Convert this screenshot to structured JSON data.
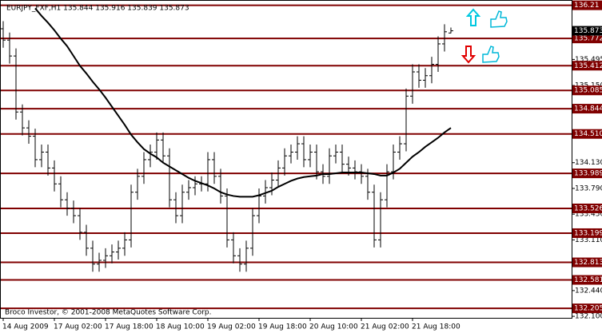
{
  "chart_data": {
    "type": "ohlc",
    "symbol_info": "EURJPY_FXF,H1  135.844 135.916 135.839 135.873",
    "copyright": "Broco Investor, © 2001-2008 MetaQuotes Software Corp.",
    "categories": [
      "14 Aug 2009",
      null,
      null,
      null,
      null,
      null,
      null,
      null,
      "17 Aug 02:00",
      null,
      null,
      null,
      null,
      null,
      null,
      null,
      "17 Aug 18:00",
      null,
      null,
      null,
      null,
      null,
      null,
      null,
      "18 Aug 10:00",
      null,
      null,
      null,
      null,
      null,
      null,
      null,
      "19 Aug 02:00",
      null,
      null,
      null,
      null,
      null,
      null,
      null,
      "19 Aug 18:00",
      null,
      null,
      null,
      null,
      null,
      null,
      null,
      "20 Aug 10:00",
      null,
      null,
      null,
      null,
      null,
      null,
      null,
      "21 Aug 02:00",
      null,
      null,
      null,
      null,
      null,
      null,
      null,
      "21 Aug 18:00",
      null,
      null,
      null,
      null,
      null,
      null
    ],
    "open": [
      135.9,
      135.75,
      135.54,
      134.8,
      134.59,
      134.48,
      134.17,
      134.27,
      134.06,
      133.85,
      133.64,
      133.53,
      133.43,
      133.21,
      133.0,
      132.79,
      132.84,
      132.9,
      132.95,
      133.0,
      133.11,
      133.74,
      133.95,
      134.17,
      134.27,
      134.43,
      134.22,
      133.64,
      133.43,
      133.74,
      133.8,
      133.85,
      133.85,
      134.17,
      133.95,
      133.69,
      133.11,
      132.9,
      132.79,
      133.0,
      133.43,
      133.69,
      133.8,
      133.9,
      134.06,
      134.22,
      134.27,
      134.38,
      134.17,
      134.27,
      134.01,
      133.95,
      134.22,
      134.27,
      134.11,
      134.06,
      134.01,
      133.95,
      133.74,
      133.11,
      133.64,
      134.01,
      134.27,
      134.38,
      135.01,
      135.33,
      135.22,
      135.28,
      135.43,
      135.7,
      135.844
    ],
    "high": [
      136.0,
      135.85,
      135.64,
      134.9,
      134.69,
      134.58,
      134.37,
      134.37,
      134.16,
      133.95,
      133.74,
      133.63,
      133.53,
      133.31,
      133.1,
      132.94,
      133.0,
      133.05,
      133.1,
      133.21,
      133.84,
      134.05,
      134.27,
      134.37,
      134.53,
      134.53,
      134.32,
      133.74,
      133.84,
      133.9,
      133.95,
      133.95,
      134.27,
      134.27,
      134.05,
      133.79,
      133.21,
      133.0,
      133.1,
      133.53,
      133.79,
      133.9,
      134.0,
      134.16,
      134.32,
      134.37,
      134.48,
      134.48,
      134.37,
      134.37,
      134.11,
      134.32,
      134.37,
      134.37,
      134.21,
      134.16,
      134.11,
      134.05,
      133.84,
      133.74,
      134.11,
      134.37,
      134.48,
      135.11,
      135.43,
      135.43,
      135.38,
      135.53,
      135.8,
      135.96,
      135.916
    ],
    "low": [
      135.65,
      135.44,
      134.7,
      134.49,
      134.38,
      134.07,
      134.07,
      133.96,
      133.75,
      133.54,
      133.43,
      133.33,
      133.11,
      132.9,
      132.69,
      132.69,
      132.74,
      132.8,
      132.85,
      132.9,
      133.01,
      133.64,
      133.85,
      134.07,
      134.17,
      134.12,
      133.54,
      133.33,
      133.33,
      133.64,
      133.7,
      133.75,
      133.75,
      133.85,
      133.59,
      133.01,
      132.8,
      132.69,
      132.69,
      132.9,
      133.33,
      133.59,
      133.7,
      133.8,
      133.96,
      134.12,
      134.17,
      134.07,
      134.07,
      133.91,
      133.85,
      133.85,
      134.12,
      134.01,
      133.96,
      133.91,
      133.85,
      133.64,
      133.01,
      133.01,
      133.54,
      133.91,
      134.17,
      134.28,
      134.91,
      135.12,
      135.12,
      135.18,
      135.33,
      135.6,
      135.839
    ],
    "close": [
      135.75,
      135.54,
      134.8,
      134.59,
      134.48,
      134.17,
      134.27,
      134.06,
      133.85,
      133.64,
      133.53,
      133.43,
      133.21,
      133.0,
      132.79,
      132.84,
      132.9,
      132.95,
      133.0,
      133.11,
      133.74,
      133.95,
      134.17,
      134.27,
      134.43,
      134.22,
      133.64,
      133.43,
      133.74,
      133.8,
      133.85,
      133.85,
      134.17,
      133.95,
      133.69,
      133.11,
      132.9,
      132.79,
      133.0,
      133.43,
      133.69,
      133.8,
      133.9,
      134.06,
      134.22,
      134.27,
      134.38,
      134.17,
      134.27,
      134.01,
      133.95,
      134.22,
      134.27,
      134.11,
      134.06,
      134.01,
      133.95,
      133.74,
      133.11,
      133.64,
      134.01,
      134.27,
      134.38,
      135.01,
      135.33,
      135.22,
      135.28,
      135.43,
      135.7,
      135.86,
      135.873
    ],
    "bar_color": "#000000",
    "ma": [
      null,
      null,
      null,
      null,
      null,
      136.17,
      136.07,
      135.98,
      135.88,
      135.77,
      135.67,
      135.54,
      135.41,
      135.31,
      135.2,
      135.1,
      134.99,
      134.87,
      134.75,
      134.63,
      134.5,
      134.4,
      134.31,
      134.25,
      134.2,
      134.13,
      134.08,
      134.03,
      133.98,
      133.93,
      133.89,
      133.86,
      133.83,
      133.79,
      133.74,
      133.71,
      133.69,
      133.68,
      133.68,
      133.68,
      133.7,
      133.73,
      133.76,
      133.81,
      133.85,
      133.89,
      133.92,
      133.94,
      133.95,
      133.96,
      133.98,
      133.98,
      133.99,
      134.0,
      134.0,
      134.0,
      134.0,
      133.99,
      133.98,
      133.96,
      133.96,
      134.0,
      134.05,
      134.13,
      134.21,
      134.27,
      134.34,
      134.4,
      134.46,
      134.53,
      134.59
    ],
    "ma_color": "#000000",
    "levels": [
      136.21,
      135.772,
      135.412,
      135.085,
      134.844,
      {
        "value": 134.51,
        "label": "134.510"
      },
      133.989,
      133.526,
      133.199,
      132.813,
      132.581,
      132.205
    ],
    "level_color": "#800000",
    "ylim": [
      132.08,
      136.28
    ],
    "yticks": [
      135.495,
      {
        "value": 135.15,
        "label": "135.150"
      },
      {
        "value": 134.13,
        "label": "134.130"
      },
      {
        "value": 133.79,
        "label": "133.790"
      },
      {
        "value": 133.45,
        "label": "133.450"
      },
      {
        "value": 133.11,
        "label": "133.110"
      },
      {
        "value": 132.44,
        "label": "132.440"
      },
      {
        "value": 132.1,
        "label": "132.100"
      }
    ]
  }
}
